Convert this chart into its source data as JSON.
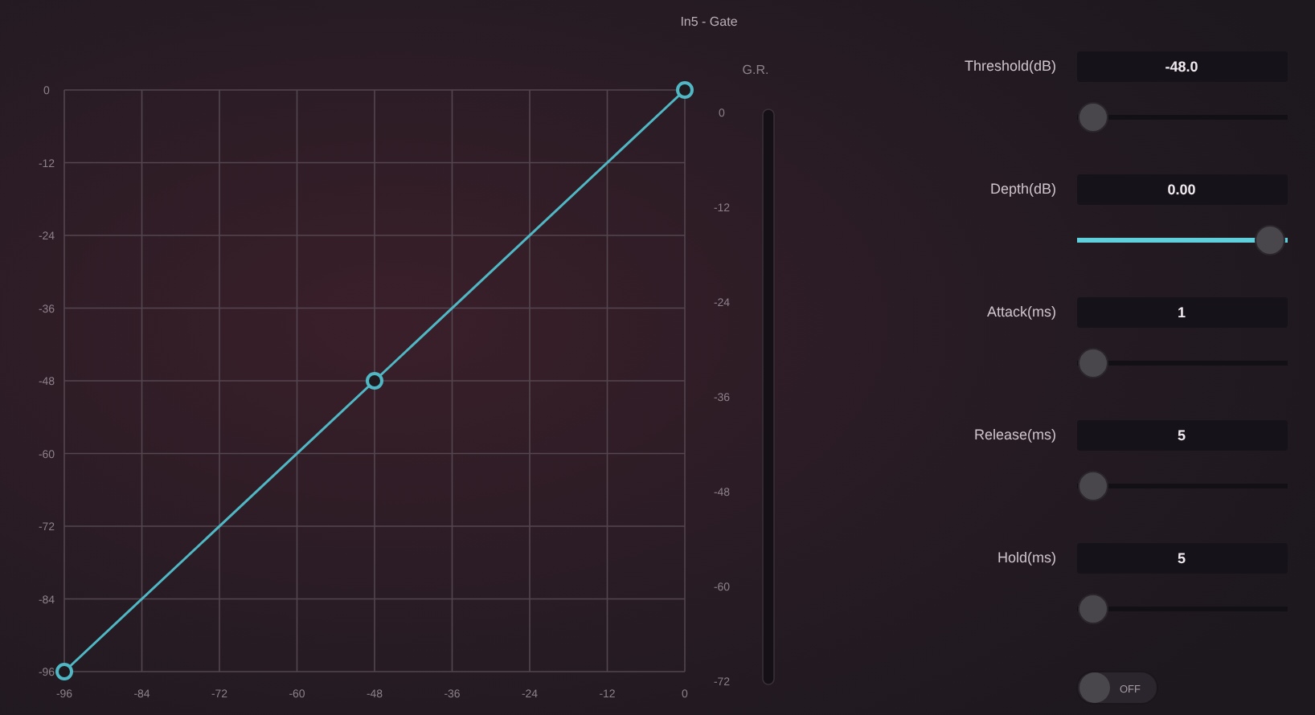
{
  "chart_data": [
    {
      "type": "line",
      "title": "In5 - Gate",
      "x": [
        -96,
        -48,
        0
      ],
      "series": [
        {
          "color": "#4fb8c4",
          "values": [
            -96,
            -48,
            0
          ]
        }
      ],
      "xlim": [
        -96,
        0
      ],
      "xticks": [
        -96,
        -84,
        -72,
        -60,
        -48,
        -36,
        -24,
        -12,
        0
      ],
      "ylim": [
        -96,
        0
      ],
      "yticks": [
        -96,
        -84,
        -72,
        -60,
        -48,
        -36,
        -24,
        -12,
        0
      ],
      "y2label": "G.R.",
      "y2lim": [
        -72,
        2.8
      ],
      "y2ticks": [
        -72,
        -60,
        -48,
        -36,
        -24,
        -12,
        0
      ],
      "grid": true,
      "marker": "circle",
      "line_style": "solid"
    },
    {
      "type": "other",
      "annotations": [
        "Threshold(dB)",
        "-48.0",
        "Depth(dB)",
        "0.00",
        "Attack(ms)",
        "1",
        "Release(ms)",
        "5",
        "Hold(ms)",
        "5",
        "OFF"
      ]
    }
  ]
}
